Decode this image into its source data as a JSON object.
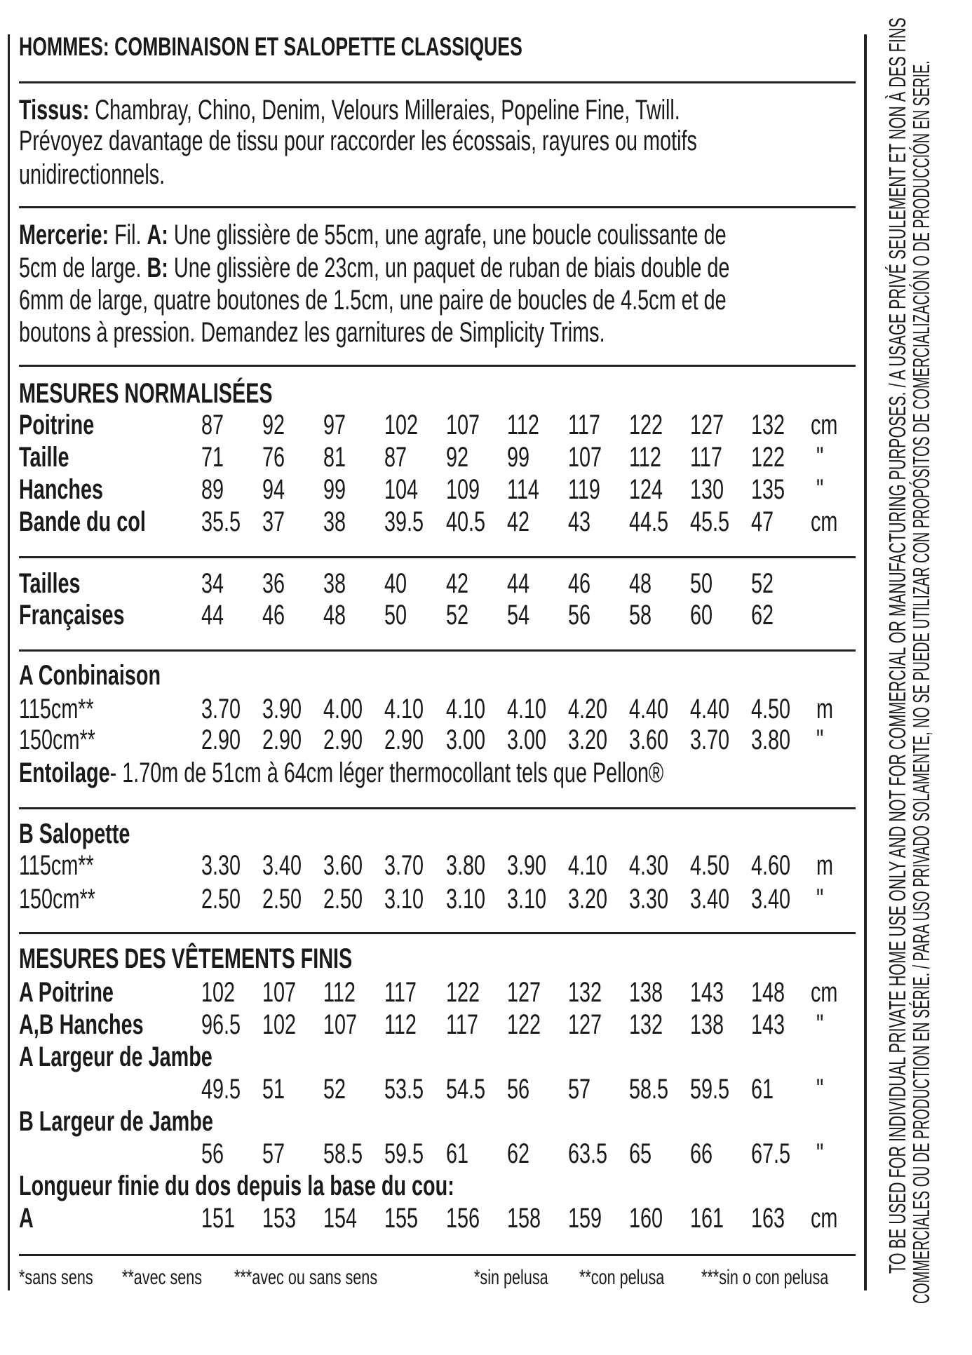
{
  "title": "HOMMES: COMBINAISON ET SALOPETTE CLASSIQUES",
  "tissus": {
    "label": "Tissus:",
    "lines": [
      "Chambray, Chino, Denim, Velours Milleraies, Popeline Fine, Twill.",
      "Prévoyez davantage de tissu pour raccorder les écossais, rayures ou motifs",
      "unidirectionnels."
    ]
  },
  "mercerie": {
    "label": "Mercerie:",
    "line1_a": "Fil.",
    "line1_b": "A:",
    "line1_c": "Une glissière de  55cm, une agrafe, une boucle coulissante de",
    "line2_a": "5cm de large.",
    "line2_b": "B:",
    "line2_c": "Une glissière de 23cm, un paquet de ruban de biais double de",
    "line3": "6mm de large, quatre boutones de 1.5cm, une paire de boucles de 4.5cm et de",
    "line4": "boutons à pression. Demandez les garnitures de Simplicity Trims."
  },
  "sections": [
    {
      "heading": "MESURES NORMALISÉES",
      "rows": [
        {
          "label": "Poitrine",
          "bold": true,
          "values": [
            "87",
            "92",
            "97",
            "102",
            "107",
            "112",
            "117",
            "122",
            "127",
            "132"
          ],
          "unit": "cm"
        },
        {
          "label": "Taille",
          "bold": true,
          "values": [
            "71",
            "76",
            "81",
            "87",
            "92",
            "99",
            "107",
            "112",
            "117",
            "122"
          ],
          "unit": "\""
        },
        {
          "label": "Hanches",
          "bold": true,
          "values": [
            "89",
            "94",
            "99",
            "104",
            "109",
            "114",
            "119",
            "124",
            "130",
            "135"
          ],
          "unit": "\""
        },
        {
          "label": "Bande du col",
          "bold": true,
          "values": [
            "35.5",
            "37",
            "38",
            "39.5",
            "40.5",
            "42",
            "43",
            "44.5",
            "45.5",
            "47"
          ],
          "unit": "cm"
        }
      ]
    },
    {
      "heading": "",
      "rows": [
        {
          "label": "Tailles",
          "bold": true,
          "values": [
            "34",
            "36",
            "38",
            "40",
            "42",
            "44",
            "46",
            "48",
            "50",
            "52"
          ],
          "unit": ""
        },
        {
          "label": "Françaises",
          "bold": true,
          "values": [
            "44",
            "46",
            "48",
            "50",
            "52",
            "54",
            "56",
            "58",
            "60",
            "62"
          ],
          "unit": ""
        }
      ]
    },
    {
      "heading": "A Conbinaison",
      "rows": [
        {
          "label": "115cm**",
          "bold": false,
          "values": [
            "3.70",
            "3.90",
            "4.00",
            "4.10",
            "4.10",
            "4.10",
            "4.20",
            "4.40",
            "4.40",
            "4.50"
          ],
          "unit": "m"
        },
        {
          "label": "150cm**",
          "bold": false,
          "values": [
            "2.90",
            "2.90",
            "2.90",
            "2.90",
            "3.00",
            "3.00",
            "3.20",
            "3.60",
            "3.70",
            "3.80"
          ],
          "unit": "\""
        }
      ],
      "note_label": "Entoilage",
      "note_text": "- 1.70m de 51cm à 64cm léger thermocollant tels que Pellon®"
    },
    {
      "heading": "B Salopette",
      "rows": [
        {
          "label": "115cm**",
          "bold": false,
          "values": [
            "3.30",
            "3.40",
            "3.60",
            "3.70",
            "3.80",
            "3.90",
            "4.10",
            "4.30",
            "4.50",
            "4.60"
          ],
          "unit": "m"
        },
        {
          "label": "150cm**",
          "bold": false,
          "values": [
            "2.50",
            "2.50",
            "2.50",
            "3.10",
            "3.10",
            "3.10",
            "3.20",
            "3.30",
            "3.40",
            "3.40"
          ],
          "unit": "\""
        }
      ]
    },
    {
      "heading": "MESURES DES VÊTEMENTS FINIS",
      "rows": [
        {
          "label": "A Poitrine",
          "bold": true,
          "values": [
            "102",
            "107",
            "112",
            "117",
            "122",
            "127",
            "132",
            "138",
            "143",
            "148"
          ],
          "unit": "cm"
        },
        {
          "label": "A,B Hanches",
          "bold": true,
          "values": [
            "96.5",
            "102",
            "107",
            "112",
            "117",
            "122",
            "127",
            "132",
            "138",
            "143"
          ],
          "unit": "\""
        },
        {
          "label": "A Largeur de Jambe",
          "bold": true,
          "values": [],
          "unit": ""
        },
        {
          "label": "",
          "bold": true,
          "values": [
            "49.5",
            "51",
            "52",
            "53.5",
            "54.5",
            "56",
            "57",
            "58.5",
            "59.5",
            "61"
          ],
          "unit": "\""
        },
        {
          "label": "B Largeur de Jambe",
          "bold": true,
          "values": [],
          "unit": ""
        },
        {
          "label": "",
          "bold": true,
          "values": [
            "56",
            "57",
            "58.5",
            "59.5",
            "61",
            "62",
            "63.5",
            "65",
            "66",
            "67.5"
          ],
          "unit": "\""
        },
        {
          "label": "Longueur finie du dos depuis la base du cou:",
          "bold": true,
          "values": [],
          "unit": ""
        },
        {
          "label": "A",
          "bold": true,
          "values": [
            "151",
            "153",
            "154",
            "155",
            "156",
            "158",
            "159",
            "160",
            "161",
            "163"
          ],
          "unit": "cm"
        }
      ]
    }
  ],
  "footnotes": [
    "*sans sens",
    "**avec sens",
    "***avec ou sans sens",
    "*sin pelusa",
    "**con pelusa",
    "***sin o con pelusa"
  ],
  "disclaimer": [
    "TO BE USED FOR INDIVIDUAL PRIVATE HOME USE ONLY AND NOT FOR COMMERCIAL OR MANUFACTURING PURPOSES. / A USAGE PRIVÉ SEULEMENT ET NON À DES FINS",
    "COMMERCIALES OU DE PRODUCTION EN SÉRIE. / PARA USO PRIVADO SOLAMENTE, NO SE PUEDE UTILIZAR CON PROPÓSITOS DE COMERCIALIZACIÓN O DE PRODUCCIÓN EN SERIE."
  ]
}
